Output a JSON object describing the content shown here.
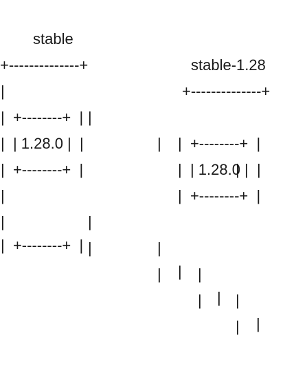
{
  "diagram": {
    "lines": [
      [
        {
          "text": "stable"
        },
        {
          "text": "stable-1.28"
        }
      ],
      [
        {
          "text": "+--------------+"
        },
        {
          "text": "+--------------+"
        }
      ],
      [
        {
          "text": "|"
        },
        {
          "text": "|"
        },
        {
          "text": "|"
        },
        {
          "text": "|"
        }
      ],
      [
        {
          "text": "|  +--------+  |"
        },
        {
          "text": "|  +--------+  |"
        }
      ],
      [
        {
          "text": "|  | 1.28.0 |  |"
        },
        {
          "text": "|  | 1.28.0 |  |"
        }
      ],
      [
        {
          "text": "|  +--------+  |"
        },
        {
          "text": "|  +--------+  |"
        }
      ],
      [
        {
          "text": "|"
        },
        {
          "text": "|"
        },
        {
          "text": "|"
        },
        {
          "text": "|"
        },
        {
          "text": "|"
        }
      ],
      [
        {
          "text": "|"
        },
        {
          "text": "|"
        },
        {
          "text": "|"
        },
        {
          "text": "|"
        },
        {
          "text": "|"
        }
      ],
      [
        {
          "text": "|  +--------+  |"
        },
        {
          "text": "|"
        },
        {
          "text": "|"
        },
        {
          "text": "|"
        }
      ]
    ]
  }
}
